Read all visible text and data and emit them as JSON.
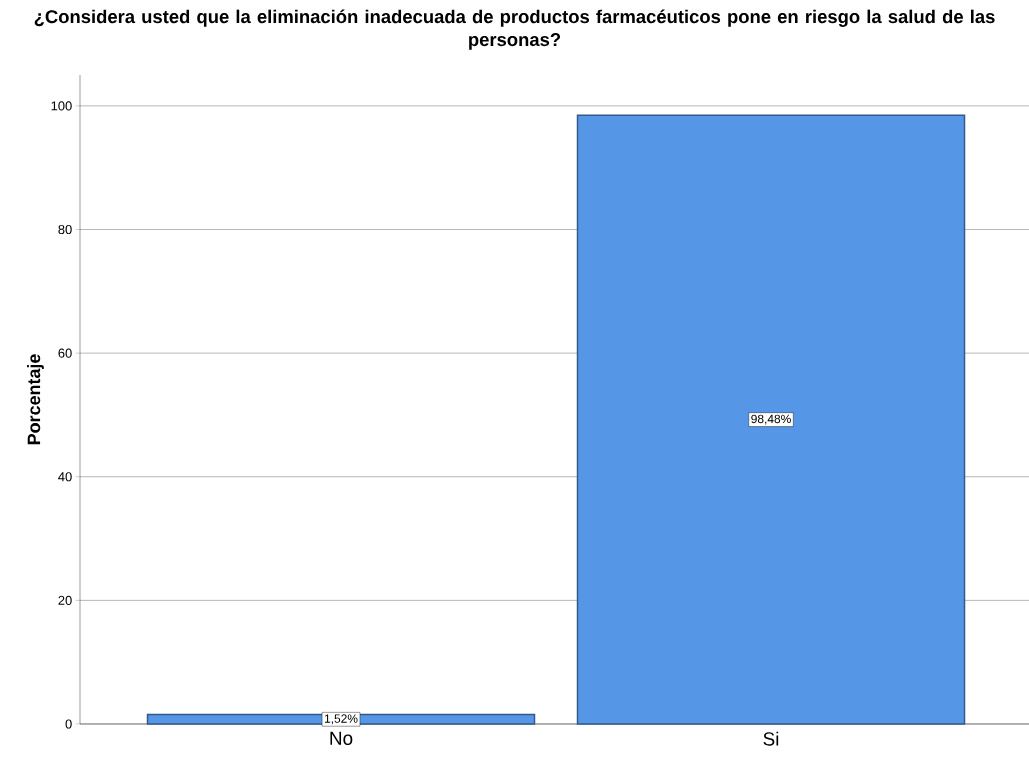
{
  "chart_data": {
    "type": "bar",
    "title": "¿Considera usted que la eliminación inadecuada de productos farmacéuticos pone en riesgo la salud de las personas?",
    "ylabel": "Porcentaje",
    "categories": [
      "No",
      "Si"
    ],
    "values": [
      1.52,
      98.48
    ],
    "value_labels": [
      "1,52%",
      "98,48%"
    ],
    "color": "#5596e6",
    "ylim": [
      0,
      105
    ],
    "yticks": [
      0,
      20,
      40,
      60,
      80,
      100
    ],
    "grid": "y"
  }
}
